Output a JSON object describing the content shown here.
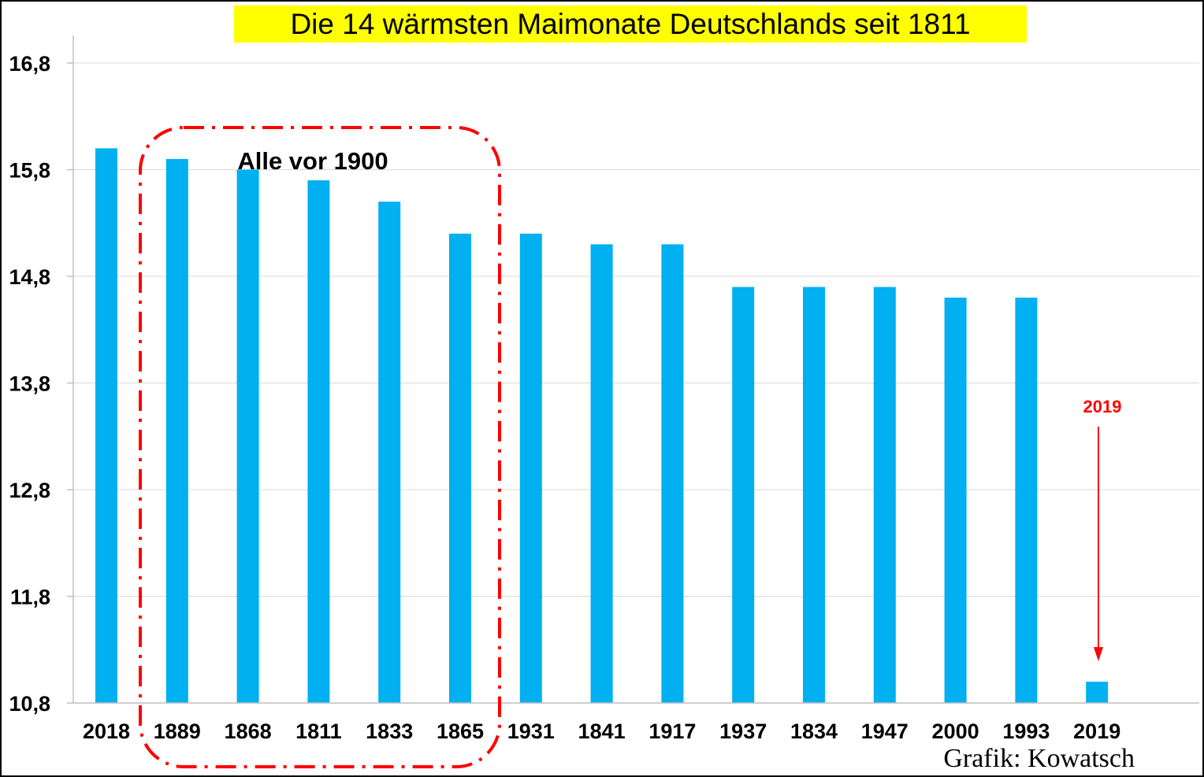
{
  "chart_data": {
    "type": "bar",
    "title": "Die 14 wärmsten Maimonate Deutschlands seit 1811",
    "categories": [
      "2018",
      "1889",
      "1868",
      "1811",
      "1833",
      "1865",
      "1931",
      "1841",
      "1917",
      "1937",
      "1834",
      "1947",
      "2000",
      "1993",
      "2019"
    ],
    "values": [
      16.0,
      15.9,
      15.8,
      15.7,
      15.5,
      15.2,
      15.2,
      15.1,
      15.1,
      14.7,
      14.7,
      14.7,
      14.6,
      14.6,
      11.0
    ],
    "ylim": [
      10.8,
      16.8
    ],
    "yticks": [
      "10,8",
      "11,8",
      "12,8",
      "13,8",
      "14,8",
      "15,8",
      "16,8"
    ],
    "ytick_values": [
      10.8,
      11.8,
      12.8,
      13.8,
      14.8,
      15.8,
      16.8
    ],
    "xlabel": "",
    "ylabel": "",
    "grid": true,
    "bar_color": "#00b0f0",
    "highlight_box_color": "#ff0000",
    "annotations": {
      "group_label": "Alle vor 1900",
      "arrow_label": "2019",
      "credit": "Grafik: Kowatsch"
    },
    "title_background": "#ffff00"
  }
}
